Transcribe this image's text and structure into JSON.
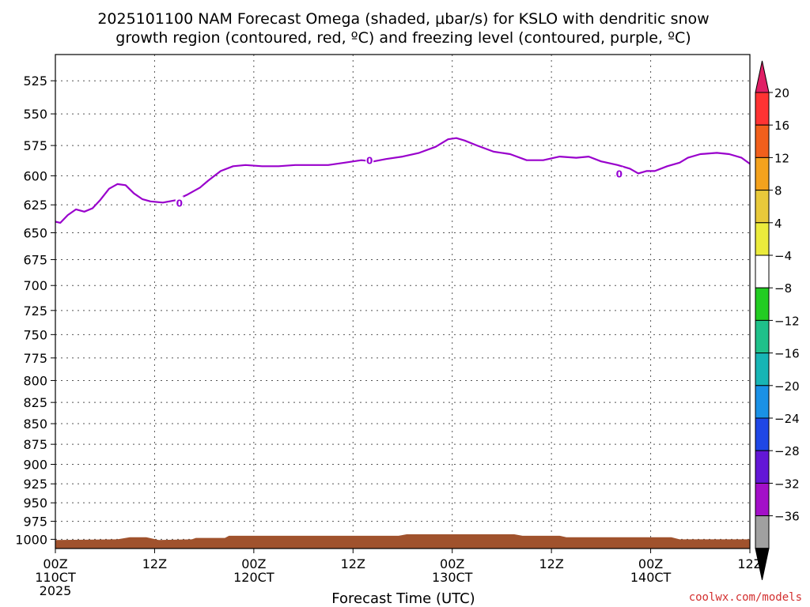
{
  "title": {
    "line1": "2025101100 NAM Forecast Omega (shaded, μbar/s) for KSLO with dendritic snow",
    "line2": "growth region (contoured, red, ºC) and freezing level (contoured, purple, ºC)"
  },
  "xlabel": "Forecast Time (UTC)",
  "credit": "coolwx.com/models",
  "chart_data": {
    "type": "line",
    "title": "2025101100 NAM Forecast Omega (shaded, μbar/s) for KSLO with dendritic snow growth region (contoured, red, ºC) and freezing level (contoured, purple, ºC)",
    "xlabel": "Forecast Time (UTC)",
    "ylabel": "",
    "x_unit": "forecast hour",
    "xlim": [
      0,
      84
    ],
    "y_scale": "log",
    "ylim": [
      1000,
      500
    ],
    "grid": true,
    "x_ticks": [
      {
        "hour": 0,
        "lines": [
          "00Z",
          "110CT",
          "2025"
        ]
      },
      {
        "hour": 12,
        "lines": [
          "12Z"
        ]
      },
      {
        "hour": 24,
        "lines": [
          "00Z",
          "120CT"
        ]
      },
      {
        "hour": 36,
        "lines": [
          "12Z"
        ]
      },
      {
        "hour": 48,
        "lines": [
          "00Z",
          "130CT"
        ]
      },
      {
        "hour": 60,
        "lines": [
          "12Z"
        ]
      },
      {
        "hour": 72,
        "lines": [
          "00Z",
          "140CT"
        ]
      },
      {
        "hour": 84,
        "lines": [
          "12Z"
        ]
      }
    ],
    "y_ticks": [
      525,
      550,
      575,
      600,
      625,
      650,
      675,
      700,
      725,
      750,
      775,
      800,
      825,
      850,
      875,
      900,
      925,
      950,
      975,
      1000
    ],
    "series": [
      {
        "color": "#9900cc",
        "points": [
          [
            0,
            640
          ],
          [
            0.6,
            641
          ],
          [
            1.5,
            634
          ],
          [
            2.5,
            629
          ],
          [
            3.5,
            631
          ],
          [
            4.5,
            628
          ],
          [
            5.4,
            621
          ],
          [
            6.5,
            611
          ],
          [
            7.5,
            607
          ],
          [
            8.5,
            608
          ],
          [
            9.5,
            615
          ],
          [
            10.5,
            620
          ],
          [
            11.5,
            622
          ],
          [
            13,
            623
          ],
          [
            14.5,
            621
          ],
          [
            16,
            616
          ],
          [
            17.5,
            610
          ],
          [
            18.5,
            604
          ],
          [
            20,
            596
          ],
          [
            21.5,
            592
          ],
          [
            23,
            591
          ],
          [
            25,
            592
          ],
          [
            27,
            592
          ],
          [
            29,
            591
          ],
          [
            31,
            591
          ],
          [
            33,
            591
          ],
          [
            35,
            589
          ],
          [
            37,
            587
          ],
          [
            38.5,
            588
          ],
          [
            40,
            586
          ],
          [
            42,
            584
          ],
          [
            44,
            581
          ],
          [
            46,
            576
          ],
          [
            47.5,
            570
          ],
          [
            48.5,
            569
          ],
          [
            49.5,
            571
          ],
          [
            51,
            575
          ],
          [
            53,
            580
          ],
          [
            55,
            582
          ],
          [
            57,
            587
          ],
          [
            59,
            587
          ],
          [
            61,
            584
          ],
          [
            63,
            585
          ],
          [
            64.5,
            584
          ],
          [
            66,
            588
          ],
          [
            68,
            591
          ],
          [
            69.5,
            594
          ],
          [
            70.5,
            598
          ],
          [
            71.5,
            596
          ],
          [
            72.5,
            596
          ],
          [
            74,
            592
          ],
          [
            75.5,
            589
          ],
          [
            76.5,
            585
          ],
          [
            78,
            582
          ],
          [
            80,
            581
          ],
          [
            81.5,
            582
          ],
          [
            83,
            585
          ],
          [
            84,
            590
          ]
        ],
        "contour_labels": [
          {
            "text": "0",
            "x": 15,
            "y": 623
          },
          {
            "text": "0",
            "x": 38,
            "y": 587
          },
          {
            "text": "0",
            "x": 68.2,
            "y": 598
          }
        ]
      }
    ],
    "terrain": {
      "color": "#a0522d",
      "top_pressure": [
        [
          0,
          1001
        ],
        [
          7.5,
          1000
        ],
        [
          9,
          997
        ],
        [
          11,
          997
        ],
        [
          12.5,
          1001
        ],
        [
          16.5,
          1000
        ],
        [
          17,
          998
        ],
        [
          20.5,
          998
        ],
        [
          21,
          995
        ],
        [
          41.5,
          995
        ],
        [
          42.5,
          993
        ],
        [
          55.5,
          993
        ],
        [
          56.5,
          995
        ],
        [
          61,
          995
        ],
        [
          61.8,
          997
        ],
        [
          74.5,
          997
        ],
        [
          75.5,
          1000
        ],
        [
          84,
          1000
        ]
      ]
    },
    "colorbar": {
      "label_values": [
        "20",
        "16",
        "12",
        "8",
        "4",
        "−4",
        "−8",
        "−12",
        "−16",
        "−20",
        "−24",
        "−28",
        "−32",
        "−36"
      ],
      "colors": [
        "#e01f65",
        "#ff3333",
        "#f15f1c",
        "#f4a21d",
        "#e8c93a",
        "#ebeb3c",
        "#ffffff",
        "#22cc22",
        "#1fc08a",
        "#17b5b5",
        "#1a91e6",
        "#1f47e6",
        "#6317d6",
        "#a30fc8",
        "#a0a0a0",
        "#000000"
      ]
    }
  }
}
